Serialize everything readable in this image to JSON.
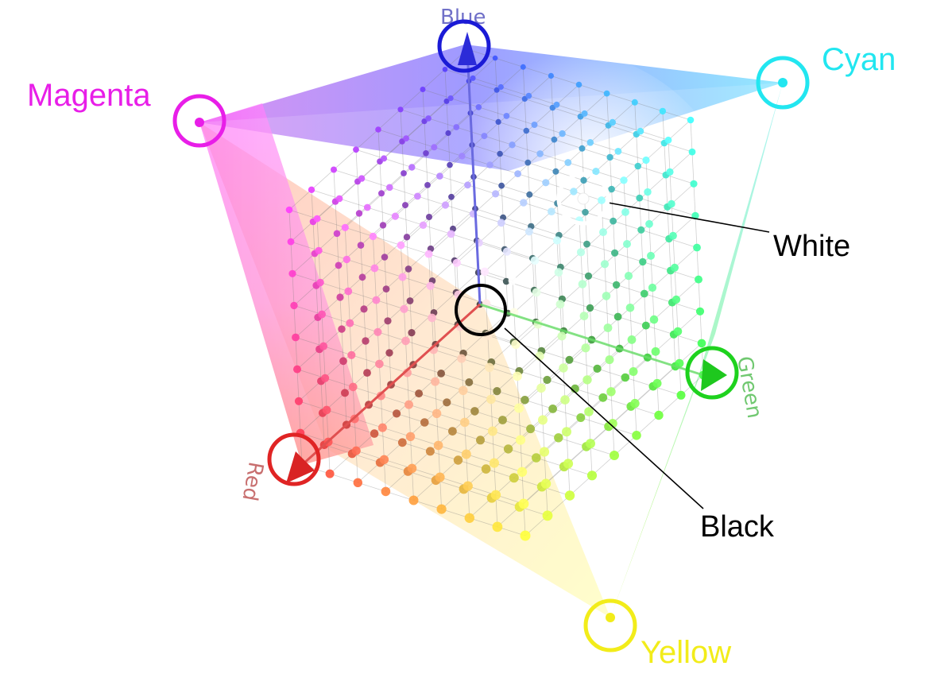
{
  "diagram": {
    "corners": [
      {
        "id": "magenta",
        "label": "Magenta",
        "color": "#e81ee8"
      },
      {
        "id": "cyan",
        "label": "Cyan",
        "color": "#22e6f0"
      },
      {
        "id": "yellow",
        "label": "Yellow",
        "color": "#f2ec1a"
      },
      {
        "id": "white",
        "label": "White",
        "color": "#ffffff"
      },
      {
        "id": "black",
        "label": "Black",
        "color": "#000000"
      }
    ],
    "axes": [
      {
        "id": "red",
        "label": "Red",
        "color": "#e02424"
      },
      {
        "id": "green",
        "label": "Green",
        "color": "#1ed21e"
      },
      {
        "id": "blue",
        "label": "Blue",
        "color": "#1a1ad6"
      }
    ],
    "grid_divisions": 10
  }
}
